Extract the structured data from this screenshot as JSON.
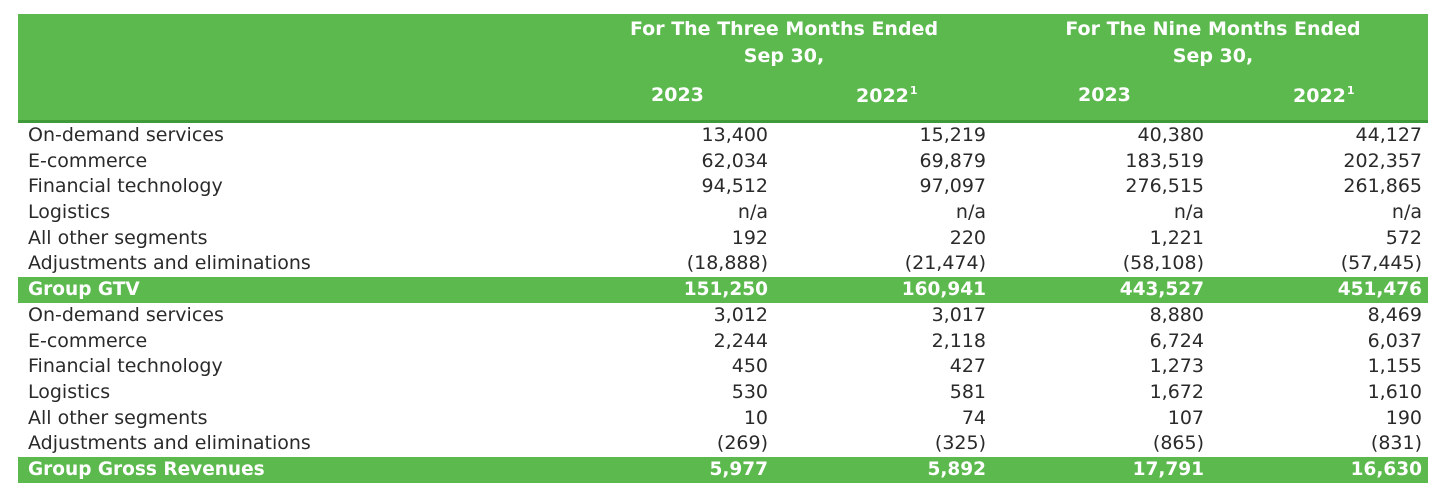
{
  "header": {
    "three_months_line1": "For The Three Months Ended",
    "three_months_line2": "Sep 30,",
    "nine_months_line1": "For The Nine Months Ended",
    "nine_months_line2": "Sep 30,",
    "years": [
      "2023",
      "2022",
      "2023",
      "2022"
    ],
    "footnote_marker": "1"
  },
  "colors": {
    "header_green": "#5cb94e",
    "header_border": "#3f9a39"
  },
  "rows": [
    {
      "label": "On-demand services",
      "values": [
        "13,400",
        "15,219",
        "40,380",
        "44,127"
      ]
    },
    {
      "label": "E-commerce",
      "values": [
        "62,034",
        "69,879",
        "183,519",
        "202,357"
      ]
    },
    {
      "label": "Financial technology",
      "values": [
        "94,512",
        "97,097",
        "276,515",
        "261,865"
      ]
    },
    {
      "label": "Logistics",
      "values": [
        "n/a",
        "n/a",
        "n/a",
        "n/a"
      ]
    },
    {
      "label": "All other segments",
      "values": [
        "192",
        "220",
        "1,221",
        "572"
      ]
    },
    {
      "label": "Adjustments and eliminations",
      "values": [
        "(18,888)",
        "(21,474)",
        "(58,108)",
        "(57,445)"
      ]
    },
    {
      "label": "Group GTV",
      "values": [
        "151,250",
        "160,941",
        "443,527",
        "451,476"
      ],
      "total": true
    },
    {
      "label": "On-demand services",
      "values": [
        "3,012",
        "3,017",
        "8,880",
        "8,469"
      ]
    },
    {
      "label": "E-commerce",
      "values": [
        "2,244",
        "2,118",
        "6,724",
        "6,037"
      ]
    },
    {
      "label": "Financial technology",
      "values": [
        "450",
        "427",
        "1,273",
        "1,155"
      ]
    },
    {
      "label": "Logistics",
      "values": [
        "530",
        "581",
        "1,672",
        "1,610"
      ]
    },
    {
      "label": "All other segments",
      "values": [
        "10",
        "74",
        "107",
        "190"
      ]
    },
    {
      "label": "Adjustments and eliminations",
      "values": [
        "(269)",
        "(325)",
        "(865)",
        "(831)"
      ]
    },
    {
      "label": "Group Gross Revenues",
      "values": [
        "5,977",
        "5,892",
        "17,791",
        "16,630"
      ],
      "total": true
    }
  ]
}
